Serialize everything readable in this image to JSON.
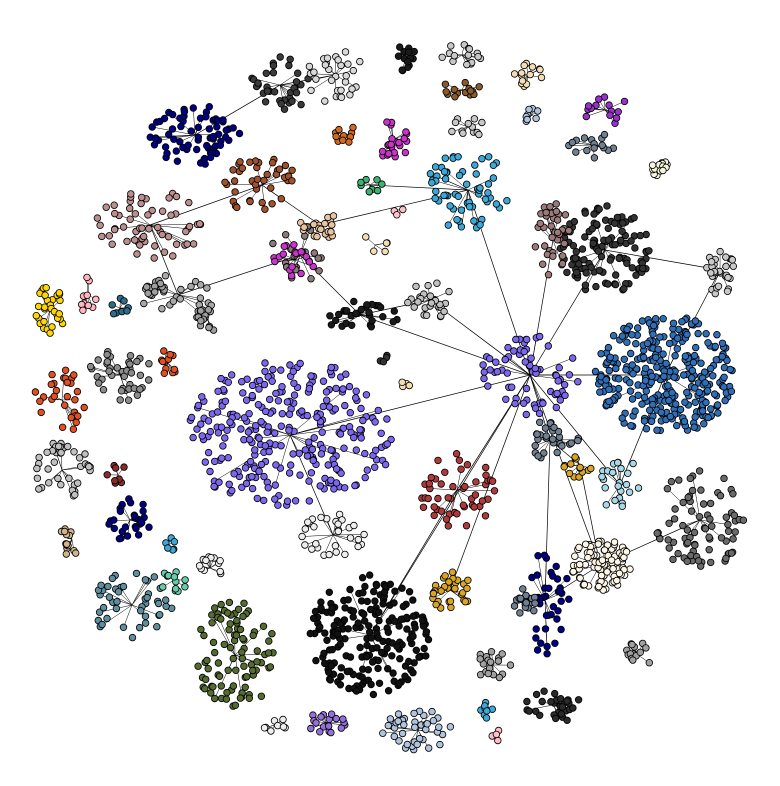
{
  "diagram": {
    "type": "network-graph",
    "background": "#ffffff",
    "node_stroke": "#000000",
    "edge_color": "#000000",
    "clusters": [
      {
        "id": "c01",
        "color": "#000080",
        "node_count": 70
      },
      {
        "id": "c02",
        "color": "#3a3a3a",
        "node_count": 35
      },
      {
        "id": "c03",
        "color": "#d9d9d9",
        "node_count": 30
      },
      {
        "id": "c04",
        "color": "#1a1a1a",
        "node_count": 14
      },
      {
        "id": "c05",
        "color": "#c8c8c8",
        "node_count": 16
      },
      {
        "id": "c06",
        "color": "#8b5a2b",
        "node_count": 14
      },
      {
        "id": "c07",
        "color": "#f5deb3",
        "node_count": 14
      },
      {
        "id": "c08",
        "color": "#9932cc",
        "node_count": 14
      },
      {
        "id": "c09",
        "color": "#c8c8c8",
        "node_count": 12
      },
      {
        "id": "c10",
        "color": "#b0c4de",
        "node_count": 8
      },
      {
        "id": "c11",
        "color": "#708090",
        "node_count": 16
      },
      {
        "id": "c12",
        "color": "#d2691e",
        "node_count": 10
      },
      {
        "id": "c13",
        "color": "#cc33cc",
        "node_count": 22
      },
      {
        "id": "c14",
        "color": "#3cb371",
        "node_count": 10
      },
      {
        "id": "c15",
        "color": "#3aa8d8",
        "node_count": 60
      },
      {
        "id": "c16",
        "color": "#a0522d",
        "node_count": 40
      },
      {
        "id": "c17",
        "color": "#bc8f8f",
        "node_count": 60
      },
      {
        "id": "c18",
        "color": "#a9a9a9",
        "node_count": 20
      },
      {
        "id": "c19",
        "color": "#ffd700",
        "node_count": 30
      },
      {
        "id": "c20",
        "color": "#ffb6c1",
        "node_count": 10
      },
      {
        "id": "c21",
        "color": "#2b6e8a",
        "node_count": 8
      },
      {
        "id": "c22",
        "color": "#8a7a78",
        "node_count": 20
      },
      {
        "id": "c23",
        "color": "#e8c4a0",
        "node_count": 20
      },
      {
        "id": "c24",
        "color": "#cc33cc",
        "node_count": 18
      },
      {
        "id": "c25",
        "color": "#c0c0c0",
        "node_count": 26
      },
      {
        "id": "c26",
        "color": "#1a1a1a",
        "node_count": 30
      },
      {
        "id": "c27",
        "color": "#e05020",
        "node_count": 30
      },
      {
        "id": "c28",
        "color": "#8c8c8c",
        "node_count": 40
      },
      {
        "id": "c29",
        "color": "#e05020",
        "node_count": 12
      },
      {
        "id": "c30",
        "color": "#c0c0c0",
        "node_count": 40
      },
      {
        "id": "c31",
        "color": "#8b2a2a",
        "node_count": 8
      },
      {
        "id": "c32",
        "color": "#d2b48c",
        "node_count": 14
      },
      {
        "id": "c33",
        "color": "#000080",
        "node_count": 30
      },
      {
        "id": "c34",
        "color": "#3aa8d8",
        "node_count": 6
      },
      {
        "id": "c35",
        "color": "#5f8f9f",
        "node_count": 45
      },
      {
        "id": "c36",
        "color": "#66cdaa",
        "node_count": 12
      },
      {
        "id": "c37",
        "color": "#eeeeee",
        "node_count": 12
      },
      {
        "id": "c38",
        "color": "#556b2f",
        "node_count": 90
      },
      {
        "id": "c39",
        "color": "#7b68ee",
        "node_count": 280
      },
      {
        "id": "c40",
        "color": "#eeeeee",
        "node_count": 30
      },
      {
        "id": "c41",
        "color": "#111111",
        "node_count": 200
      },
      {
        "id": "c42",
        "color": "#eeeeee",
        "node_count": 8
      },
      {
        "id": "c43",
        "color": "#9370db",
        "node_count": 18
      },
      {
        "id": "c44",
        "color": "#b0c4de",
        "node_count": 40
      },
      {
        "id": "c45",
        "color": "#3aa8d8",
        "node_count": 8
      },
      {
        "id": "c46",
        "color": "#ffc0cb",
        "node_count": 4
      },
      {
        "id": "c47",
        "color": "#2a2a2a",
        "node_count": 30
      },
      {
        "id": "c48",
        "color": "#a0a0a0",
        "node_count": 18
      },
      {
        "id": "c49",
        "color": "#a0a0a0",
        "node_count": 14
      },
      {
        "id": "c50",
        "color": "#2f6fb8",
        "node_count": 320
      },
      {
        "id": "c51",
        "color": "#333333",
        "node_count": 120
      },
      {
        "id": "c52",
        "color": "#9a7a7a",
        "node_count": 40
      },
      {
        "id": "c53",
        "color": "#b03a3a",
        "node_count": 50
      },
      {
        "id": "c54",
        "color": "#7b68ee",
        "node_count": 70
      },
      {
        "id": "c55",
        "color": "#708090",
        "node_count": 30
      },
      {
        "id": "c56",
        "color": "#daa520",
        "node_count": 14
      },
      {
        "id": "c57",
        "color": "#fdf5e6",
        "node_count": 90
      },
      {
        "id": "c58",
        "color": "#6a6a6a",
        "node_count": 80
      },
      {
        "id": "c59",
        "color": "#000080",
        "node_count": 40
      },
      {
        "id": "c60",
        "color": "#708090",
        "node_count": 20
      },
      {
        "id": "c61",
        "color": "#daa520",
        "node_count": 30
      },
      {
        "id": "c62",
        "color": "#a8d8ea",
        "node_count": 24
      },
      {
        "id": "c63",
        "color": "#c8c8c8",
        "node_count": 30
      },
      {
        "id": "c64",
        "color": "#f5f5dc",
        "node_count": 14
      },
      {
        "id": "c65",
        "color": "#f5deb3",
        "node_count": 5
      },
      {
        "id": "c66",
        "color": "#9e9e9e",
        "node_count": 14
      },
      {
        "id": "c67",
        "color": "#9e9e9e",
        "node_count": 14
      },
      {
        "id": "c68",
        "color": "#f5deb3",
        "node_count": 4
      },
      {
        "id": "c69",
        "color": "#ffc0cb",
        "node_count": 3
      },
      {
        "id": "c70",
        "color": "#333333",
        "node_count": 4
      }
    ]
  }
}
